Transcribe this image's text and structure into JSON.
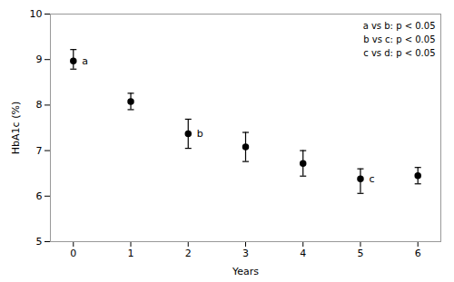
{
  "chart_data": {
    "type": "errorbar",
    "x": [
      0,
      1,
      2,
      3,
      4,
      5,
      6
    ],
    "values": [
      8.97,
      8.08,
      7.37,
      7.08,
      6.72,
      6.38,
      6.45
    ],
    "yerr_lower": [
      0.18,
      0.18,
      0.32,
      0.32,
      0.28,
      0.32,
      0.18
    ],
    "yerr_upper": [
      0.25,
      0.18,
      0.32,
      0.32,
      0.28,
      0.22,
      0.18
    ],
    "xlabel": "Years",
    "ylabel": "HbA1c (%)",
    "xlim": [
      -0.4,
      6.4
    ],
    "ylim": [
      5,
      10
    ],
    "xticks": [
      0,
      1,
      2,
      3,
      4,
      5,
      6
    ],
    "yticks": [
      5,
      6,
      7,
      8,
      9,
      10
    ],
    "color": "#000000",
    "marker": "circle",
    "line_style": "none",
    "annotations": [
      {
        "text": "a",
        "x": 0.15,
        "y": 8.97
      },
      {
        "text": "b",
        "x": 2.15,
        "y": 7.37
      },
      {
        "text": "c",
        "x": 5.15,
        "y": 6.38
      }
    ],
    "text_box": [
      "a vs b: p < 0.05",
      "b vs c: p < 0.05",
      "c vs d: p < 0.05"
    ]
  }
}
